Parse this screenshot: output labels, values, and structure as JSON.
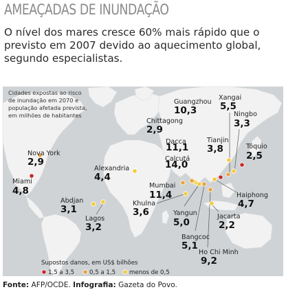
{
  "title": "AMEAÇADAS DE INUNDAÇÃO",
  "subtitle": "O nível dos mares cresce 60% mais rápido que o previsto em 2007 devido ao aquecimento global, segundo especialistas.",
  "note_lines": [
    "Cidades expostas ao risco",
    "de inundação em 2070 e",
    "população afetada prevista,",
    "em milhões de habitantes"
  ],
  "colors": {
    "ocean": "#cfd3d6",
    "land": "#f2f2f2",
    "red": "#c62828",
    "orange": "#e8a33d",
    "yellow": "#f2cc3a"
  },
  "legend": {
    "title": "Supostos danos, em US$ bilhões",
    "items": [
      {
        "label": "1,5 a 3,5",
        "color": "#c62828"
      },
      {
        "label": "0,5 a 1,5",
        "color": "#e8a33d"
      },
      {
        "label": "menos de 0,5",
        "color": "#f2cc3a"
      }
    ]
  },
  "source": {
    "prefix": "Fonte:",
    "source_text": "AFP/OCDE.",
    "credit_prefix": "Infografia:",
    "credit_text": "Gazeta do Povo."
  },
  "chart_data": {
    "type": "map",
    "unit": "milhões de habitantes",
    "cities": [
      {
        "name": "Nova York",
        "value": "2,9",
        "damage": "0,5 a 1,5"
      },
      {
        "name": "Miami",
        "value": "4,8",
        "damage": "1,5 a 3,5"
      },
      {
        "name": "Abdjan",
        "value": "3,1",
        "damage": "menos de 0,5"
      },
      {
        "name": "Lagos",
        "value": "3,2",
        "damage": "menos de 0,5"
      },
      {
        "name": "Alexandria",
        "value": "4,4",
        "damage": "menos de 0,5"
      },
      {
        "name": "Mumbai",
        "value": "11,4",
        "damage": "0,5 a 1,5"
      },
      {
        "name": "Khulna",
        "value": "3,6",
        "damage": "menos de 0,5"
      },
      {
        "name": "Chittagong",
        "value": "2,9",
        "damage": "menos de 0,5"
      },
      {
        "name": "Dacca",
        "value": "11,1",
        "damage": "menos de 0,5"
      },
      {
        "name": "Calcutá",
        "value": "14,0",
        "damage": "0,5 a 1,5"
      },
      {
        "name": "Guangzhou",
        "value": "10,3",
        "damage": "1,5 a 3,5"
      },
      {
        "name": "Yangun",
        "value": "5,0",
        "damage": "menos de 0,5"
      },
      {
        "name": "Bangcoc",
        "value": "5,1",
        "damage": "0,5 a 1,5"
      },
      {
        "name": "Ho Chi Minh",
        "value": "9,2",
        "damage": "0,5 a 1,5"
      },
      {
        "name": "Jacarta",
        "value": "2,2",
        "damage": "menos de 0,5"
      },
      {
        "name": "Haiphong",
        "value": "4,7",
        "damage": "menos de 0,5"
      },
      {
        "name": "Xangai",
        "value": "5,5",
        "damage": "0,5 a 1,5"
      },
      {
        "name": "Tianjin",
        "value": "3,8",
        "damage": "menos de 0,5"
      },
      {
        "name": "Ningbo",
        "value": "3,3",
        "damage": "menos de 0,5"
      },
      {
        "name": "Tóquio",
        "value": "2,5",
        "damage": "1,5 a 3,5"
      }
    ]
  }
}
